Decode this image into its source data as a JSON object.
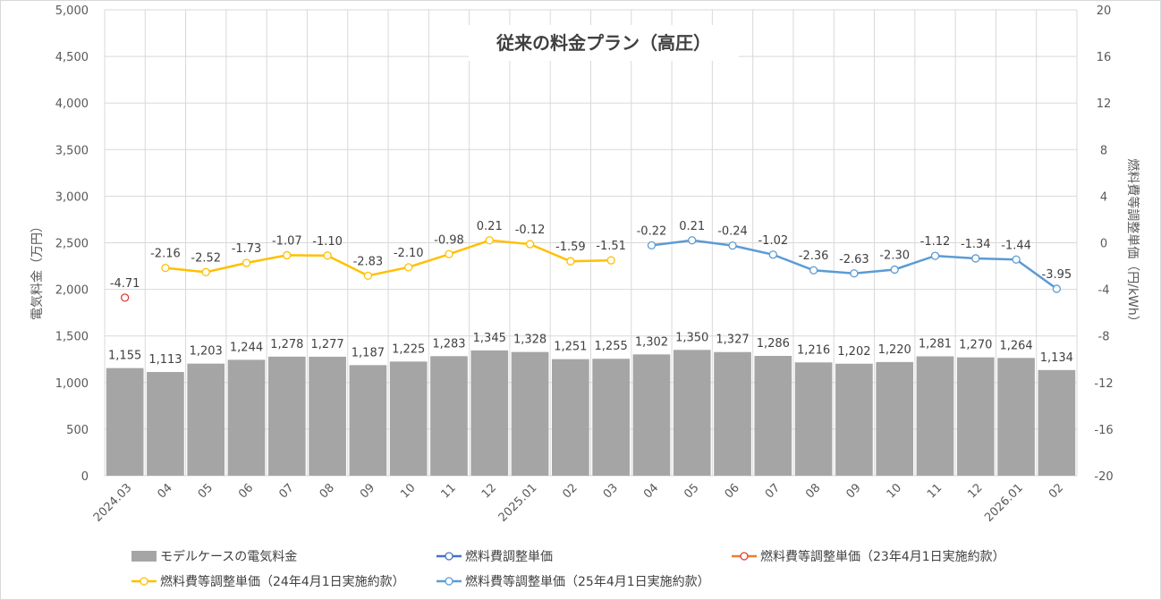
{
  "chart_data": {
    "type": "bar+line",
    "title": "従来の料金プラン（高圧）",
    "ylabel_left": "電気料金（万円）",
    "ylabel_right": "燃料費等調整単価（円/kWh）",
    "ylim_left": [
      0,
      5000
    ],
    "ylim_right": [
      -20,
      20
    ],
    "left_ticks": [
      "0",
      "500",
      "1,000",
      "1,500",
      "2,000",
      "2,500",
      "3,000",
      "3,500",
      "4,000",
      "4,500",
      "5,000"
    ],
    "right_ticks": [
      "-20",
      "-16",
      "-12",
      "-8",
      "-4",
      "0",
      "4",
      "8",
      "12",
      "16",
      "20"
    ],
    "categories": [
      "2024.03",
      "04",
      "05",
      "06",
      "07",
      "08",
      "09",
      "10",
      "11",
      "12",
      "2025.01",
      "02",
      "03",
      "04",
      "05",
      "06",
      "07",
      "08",
      "09",
      "10",
      "11",
      "12",
      "2026.01",
      "02"
    ],
    "bars": {
      "name": "モデルケースの電気料金",
      "color": "#a5a5a5",
      "values": [
        1155,
        1113,
        1203,
        1244,
        1278,
        1277,
        1187,
        1225,
        1283,
        1345,
        1328,
        1251,
        1255,
        1302,
        1350,
        1327,
        1286,
        1216,
        1202,
        1220,
        1281,
        1270,
        1264,
        1134
      ],
      "labels": [
        "1,155",
        "1,113",
        "1,203",
        "1,244",
        "1,278",
        "1,277",
        "1,187",
        "1,225",
        "1,283",
        "1,345",
        "1,328",
        "1,251",
        "1,255",
        "1,302",
        "1,350",
        "1,327",
        "1,286",
        "1,216",
        "1,202",
        "1,220",
        "1,281",
        "1,270",
        "1,264",
        "1,134"
      ]
    },
    "series": [
      {
        "name": "燃料費調整単価",
        "color": "#4472c4",
        "values": [
          null,
          null,
          null,
          null,
          null,
          null,
          null,
          null,
          null,
          null,
          null,
          null,
          null,
          null,
          null,
          null,
          null,
          null,
          null,
          null,
          null,
          null,
          null,
          null
        ],
        "labels": []
      },
      {
        "name": "燃料費等調整単価（23年4月1日実施約款）",
        "color": "#ed7d31",
        "marker_color": "#e03c31",
        "values": [
          -4.71,
          null,
          null,
          null,
          null,
          null,
          null,
          null,
          null,
          null,
          null,
          null,
          null,
          null,
          null,
          null,
          null,
          null,
          null,
          null,
          null,
          null,
          null,
          null
        ],
        "labels": [
          "-4.71"
        ]
      },
      {
        "name": "燃料費等調整単価（24年4月1日実施約款）",
        "color": "#ffc000",
        "values": [
          null,
          -2.16,
          -2.52,
          -1.73,
          -1.07,
          -1.1,
          -2.83,
          -2.1,
          -0.98,
          0.21,
          -0.12,
          -1.59,
          -1.51,
          null,
          null,
          null,
          null,
          null,
          null,
          null,
          null,
          null,
          null,
          null
        ],
        "labels": [
          "-2.16",
          "-2.52",
          "-1.73",
          "-1.07",
          "-1.10",
          "-2.83",
          "-2.10",
          "-0.98",
          "0.21",
          "-0.12",
          "-1.59",
          "-1.51"
        ]
      },
      {
        "name": "燃料費等調整単価（25年4月1日実施約款）",
        "color": "#5b9bd5",
        "values": [
          null,
          null,
          null,
          null,
          null,
          null,
          null,
          null,
          null,
          null,
          null,
          null,
          null,
          -0.22,
          0.21,
          -0.24,
          -1.02,
          -2.36,
          -2.63,
          -2.3,
          -1.12,
          -1.34,
          -1.44,
          -3.95
        ],
        "labels": [
          "-0.22",
          "0.21",
          "-0.24",
          "-1.02",
          "-2.36",
          "-2.63",
          "-2.30",
          "-1.12",
          "-1.34",
          "-1.44",
          "-3.95"
        ]
      }
    ],
    "legend_position": "bottom"
  }
}
